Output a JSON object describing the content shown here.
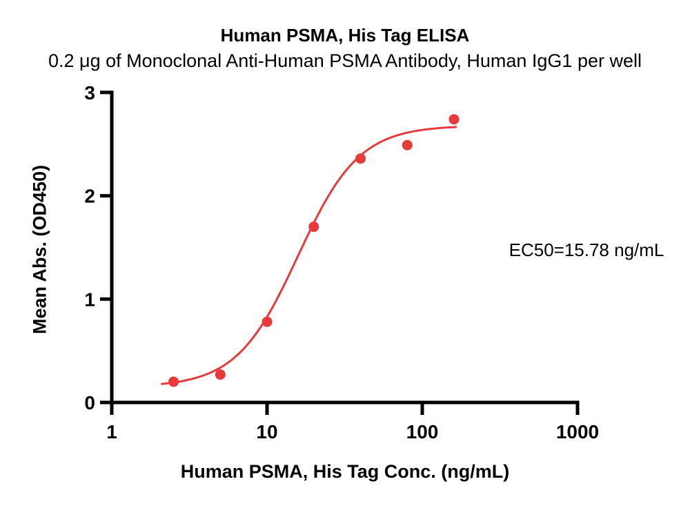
{
  "title": "Human PSMA, His Tag ELISA",
  "subtitle": "0.2 μg of Monoclonal Anti-Human PSMA Antibody, Human IgG1 per well",
  "chart_data": {
    "type": "scatter",
    "title": "Human PSMA, His Tag ELISA",
    "subtitle": "0.2 μg of Monoclonal Anti-Human PSMA Antibody, Human IgG1 per well",
    "xlabel": "Human PSMA, His Tag Conc. (ng/mL)",
    "ylabel": "Mean Abs. (OD450)",
    "x_scale": "log10",
    "xlim": [
      1,
      1000
    ],
    "ylim": [
      0,
      3
    ],
    "x_ticks": [
      1,
      10,
      100,
      1000
    ],
    "y_ticks": [
      0,
      1,
      2,
      3
    ],
    "grid": false,
    "legend": "none",
    "series": [
      {
        "name": "Monoclonal Anti-Human PSMA Antibody, Human IgG1",
        "x": [
          2.5,
          5,
          10,
          20,
          40,
          80,
          160
        ],
        "y": [
          0.2,
          0.27,
          0.78,
          1.7,
          2.36,
          2.49,
          2.74
        ]
      }
    ],
    "fit_curve": {
      "model": "4PL",
      "bottom": 0.15,
      "top": 2.68,
      "ec50": 15.78,
      "hill": 2.2,
      "x_range": [
        2.1,
        165
      ]
    },
    "ec50_text": "EC50=15.78 ng/mL",
    "point_color": "#e8393b",
    "curve_color": "#e8393b",
    "axis_color": "#000000"
  }
}
